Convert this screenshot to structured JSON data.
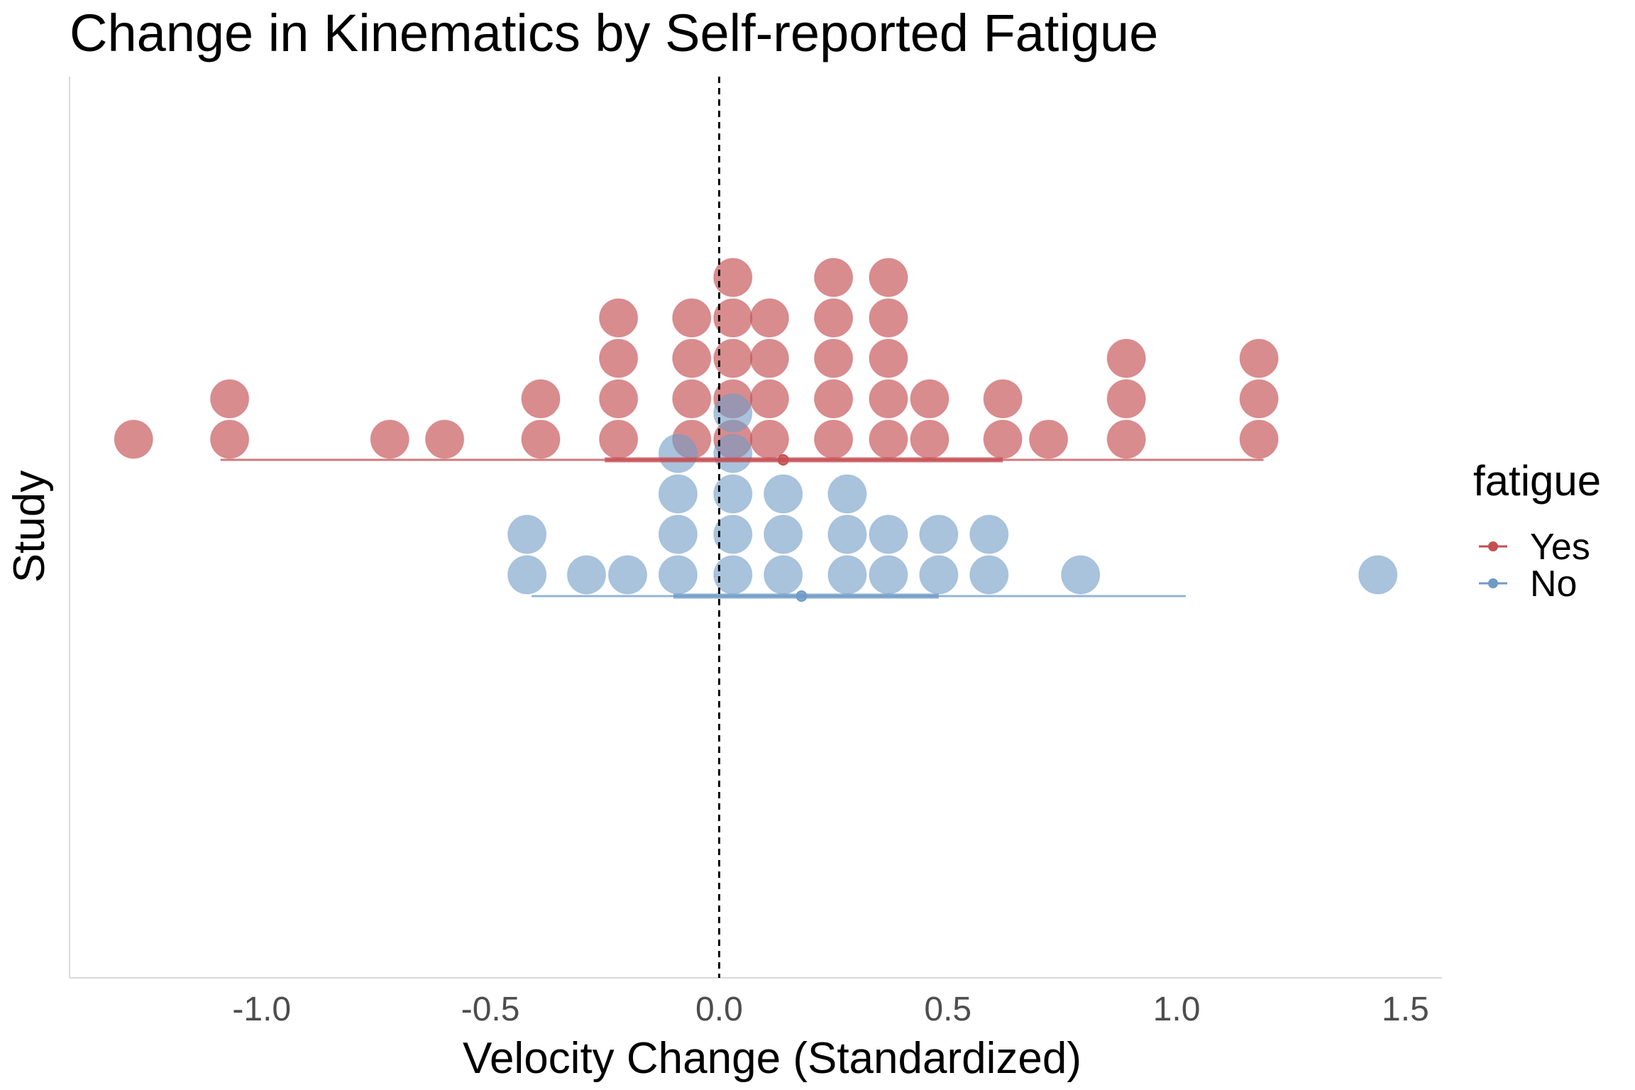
{
  "chart_data": {
    "type": "dotplot",
    "title": "Change in Kinematics by Self-reported Fatigue",
    "xlabel": "Velocity Change (Standardized)",
    "ylabel": "Study",
    "xlim": [
      -1.42,
      1.58
    ],
    "xticks": [
      "-1.0",
      "-0.5",
      "0.0",
      "0.5",
      "1.0",
      "1.5"
    ],
    "xtick_values": [
      -1.0,
      -0.5,
      0.0,
      0.5,
      1.0,
      1.5
    ],
    "reference_line_x": 0.0,
    "grid": false,
    "legend": {
      "title": "fatigue",
      "position": "right",
      "entries": [
        "Yes",
        "No"
      ]
    },
    "series": [
      {
        "name": "Yes",
        "color": "#c44e52",
        "dots": [
          -1.28,
          -1.07,
          -1.07,
          -0.72,
          -0.6,
          -0.39,
          -0.39,
          -0.22,
          -0.22,
          -0.22,
          -0.22,
          -0.06,
          -0.06,
          -0.06,
          -0.06,
          0.03,
          0.03,
          0.03,
          0.03,
          0.03,
          0.11,
          0.11,
          0.11,
          0.11,
          0.25,
          0.25,
          0.25,
          0.25,
          0.25,
          0.37,
          0.37,
          0.37,
          0.37,
          0.37,
          0.46,
          0.46,
          0.62,
          0.62,
          0.72,
          0.89,
          0.89,
          0.89,
          1.18,
          1.18,
          1.18
        ],
        "mean": 0.14,
        "inner_interval": [
          -0.25,
          0.62
        ],
        "outer_interval": [
          -1.09,
          1.19
        ]
      },
      {
        "name": "No",
        "color": "#6f9bc7",
        "dots": [
          -0.42,
          -0.42,
          -0.29,
          -0.2,
          -0.09,
          -0.09,
          -0.09,
          -0.09,
          0.03,
          0.03,
          0.03,
          0.03,
          0.03,
          0.14,
          0.14,
          0.14,
          0.28,
          0.28,
          0.28,
          0.37,
          0.37,
          0.48,
          0.48,
          0.59,
          0.59,
          0.79,
          1.44
        ],
        "mean": 0.18,
        "inner_interval": [
          -0.1,
          0.48
        ],
        "outer_interval": [
          -0.41,
          1.02
        ]
      }
    ]
  }
}
